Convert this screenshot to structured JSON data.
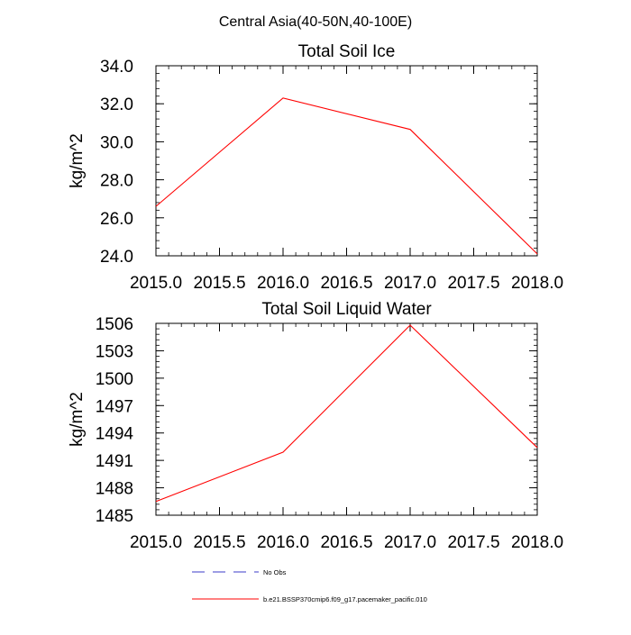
{
  "figure_title": "Central Asia(40-50N,40-100E)",
  "legend": {
    "entries": [
      {
        "label": "No Obs",
        "color": "#3b3bc8",
        "dash": true
      },
      {
        "label": "b.e21.BSSP370cmip6.f09_g17.pacemaker_pacific.010",
        "color": "#ff0000",
        "dash": false
      }
    ]
  },
  "chart_data": [
    {
      "type": "line",
      "title": "Total Soil Ice",
      "ylabel": "kg/m^2",
      "xlim": [
        2015.0,
        2018.0
      ],
      "ylim": [
        24.0,
        34.0
      ],
      "xticks": [
        2015.0,
        2015.5,
        2016.0,
        2016.5,
        2017.0,
        2017.5,
        2018.0
      ],
      "xtick_labels": [
        "2015.0",
        "2015.5",
        "2016.0",
        "2016.5",
        "2017.0",
        "2017.5",
        "2018.0"
      ],
      "yticks": [
        24.0,
        26.0,
        28.0,
        30.0,
        32.0,
        34.0
      ],
      "ytick_labels": [
        "24.0",
        "26.0",
        "28.0",
        "30.0",
        "32.0",
        "34.0"
      ],
      "series": [
        {
          "color": "#ff0000",
          "x": [
            2015,
            2016,
            2017,
            2018
          ],
          "y": [
            26.6,
            32.3,
            30.65,
            24.1
          ]
        }
      ]
    },
    {
      "type": "line",
      "title": "Total Soil Liquid Water",
      "ylabel": "kg/m^2",
      "xlim": [
        2015.0,
        2018.0
      ],
      "ylim": [
        1485,
        1506
      ],
      "xticks": [
        2015.0,
        2015.5,
        2016.0,
        2016.5,
        2017.0,
        2017.5,
        2018.0
      ],
      "xtick_labels": [
        "2015.0",
        "2015.5",
        "2016.0",
        "2016.5",
        "2017.0",
        "2017.5",
        "2018.0"
      ],
      "yticks": [
        1485,
        1488,
        1491,
        1494,
        1497,
        1500,
        1503,
        1506
      ],
      "ytick_labels": [
        "1485",
        "1488",
        "1491",
        "1494",
        "1497",
        "1500",
        "1503",
        "1506"
      ],
      "series": [
        {
          "color": "#ff0000",
          "x": [
            2015,
            2016,
            2017,
            2018
          ],
          "y": [
            1486.5,
            1491.9,
            1505.8,
            1492.4
          ]
        }
      ]
    }
  ]
}
